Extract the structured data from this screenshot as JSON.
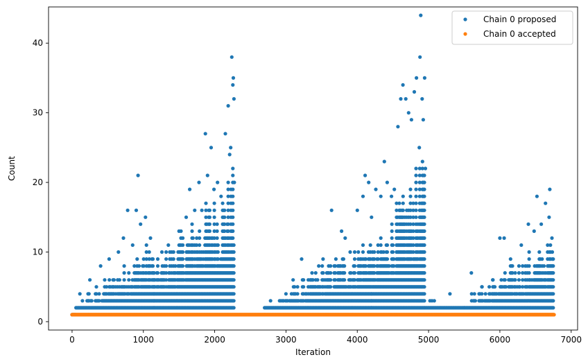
{
  "colors": {
    "proposed": "#1f77b4",
    "accepted": "#ff7f0e",
    "axis": "#000000",
    "legend_border": "#cccccc"
  },
  "chart_data": {
    "type": "scatter",
    "title": "",
    "xlabel": "Iteration",
    "ylabel": "Count",
    "xlim": [
      -330,
      7090
    ],
    "ylim": [
      -1.2,
      45.2
    ],
    "xticks": [
      0,
      1000,
      2000,
      3000,
      4000,
      5000,
      6000,
      7000
    ],
    "yticks": [
      0,
      10,
      20,
      30,
      40
    ],
    "grid": false,
    "legend_position": "top-right",
    "series": [
      {
        "name": "Chain 0 proposed",
        "color": "#1f77b4",
        "segments": [
          {
            "range": [
              0,
              50
            ],
            "step": 12,
            "max": [
              1,
              1
            ]
          },
          {
            "range": [
              55,
              1150
            ],
            "step": 13,
            "max": [
              2,
              12
            ]
          },
          {
            "range": [
              1150,
              2280
            ],
            "step": 13,
            "max": [
              8,
              22
            ]
          },
          {
            "range": [
              2700,
              3300
            ],
            "step": 14,
            "max": [
              2,
              6
            ]
          },
          {
            "range": [
              3300,
              4200
            ],
            "step": 13,
            "max": [
              6,
              13
            ]
          },
          {
            "range": [
              4200,
              4950
            ],
            "step": 13,
            "max": [
              10,
              24
            ]
          },
          {
            "range": [
              4950,
              5500
            ],
            "step": 14,
            "max": [
              3,
              2
            ]
          },
          {
            "range": [
              5500,
              6750
            ],
            "step": 13,
            "max": [
              3,
              12
            ]
          }
        ],
        "spikes": [
          {
            "x": 110,
            "y": 4
          },
          {
            "x": 250,
            "y": 6
          },
          {
            "x": 400,
            "y": 8
          },
          {
            "x": 520,
            "y": 9
          },
          {
            "x": 650,
            "y": 10
          },
          {
            "x": 720,
            "y": 12
          },
          {
            "x": 780,
            "y": 16
          },
          {
            "x": 850,
            "y": 11
          },
          {
            "x": 900,
            "y": 16
          },
          {
            "x": 925,
            "y": 21
          },
          {
            "x": 960,
            "y": 14
          },
          {
            "x": 1030,
            "y": 15
          },
          {
            "x": 1100,
            "y": 12
          },
          {
            "x": 1260,
            "y": 10
          },
          {
            "x": 1350,
            "y": 11
          },
          {
            "x": 1500,
            "y": 13
          },
          {
            "x": 1600,
            "y": 15
          },
          {
            "x": 1650,
            "y": 19
          },
          {
            "x": 1720,
            "y": 16
          },
          {
            "x": 1780,
            "y": 20
          },
          {
            "x": 1820,
            "y": 16
          },
          {
            "x": 1870,
            "y": 27
          },
          {
            "x": 1900,
            "y": 21
          },
          {
            "x": 1950,
            "y": 25
          },
          {
            "x": 1990,
            "y": 19
          },
          {
            "x": 2040,
            "y": 20
          },
          {
            "x": 2090,
            "y": 18
          },
          {
            "x": 2150,
            "y": 27
          },
          {
            "x": 2190,
            "y": 31
          },
          {
            "x": 2210,
            "y": 24
          },
          {
            "x": 2225,
            "y": 25
          },
          {
            "x": 2240,
            "y": 38
          },
          {
            "x": 2255,
            "y": 34
          },
          {
            "x": 2262,
            "y": 35
          },
          {
            "x": 2270,
            "y": 32
          },
          {
            "x": 2275,
            "y": 20
          },
          {
            "x": 2930,
            "y": 3
          },
          {
            "x": 3000,
            "y": 4
          },
          {
            "x": 3100,
            "y": 6
          },
          {
            "x": 3220,
            "y": 9
          },
          {
            "x": 3350,
            "y": 6
          },
          {
            "x": 3460,
            "y": 8
          },
          {
            "x": 3520,
            "y": 9
          },
          {
            "x": 3640,
            "y": 16
          },
          {
            "x": 3700,
            "y": 9
          },
          {
            "x": 3780,
            "y": 13
          },
          {
            "x": 3830,
            "y": 12
          },
          {
            "x": 3900,
            "y": 10
          },
          {
            "x": 4000,
            "y": 16
          },
          {
            "x": 4080,
            "y": 18
          },
          {
            "x": 4110,
            "y": 21
          },
          {
            "x": 4160,
            "y": 20
          },
          {
            "x": 4200,
            "y": 15
          },
          {
            "x": 4260,
            "y": 19
          },
          {
            "x": 4330,
            "y": 18
          },
          {
            "x": 4380,
            "y": 23
          },
          {
            "x": 4420,
            "y": 20
          },
          {
            "x": 4480,
            "y": 18
          },
          {
            "x": 4520,
            "y": 19
          },
          {
            "x": 4570,
            "y": 28
          },
          {
            "x": 4610,
            "y": 32
          },
          {
            "x": 4640,
            "y": 34
          },
          {
            "x": 4680,
            "y": 32
          },
          {
            "x": 4720,
            "y": 30
          },
          {
            "x": 4760,
            "y": 29
          },
          {
            "x": 4800,
            "y": 33
          },
          {
            "x": 4830,
            "y": 35
          },
          {
            "x": 4870,
            "y": 25
          },
          {
            "x": 4880,
            "y": 38
          },
          {
            "x": 4890,
            "y": 44
          },
          {
            "x": 4910,
            "y": 32
          },
          {
            "x": 4925,
            "y": 29
          },
          {
            "x": 4945,
            "y": 35
          },
          {
            "x": 4955,
            "y": 22
          },
          {
            "x": 5080,
            "y": 3
          },
          {
            "x": 5300,
            "y": 4
          },
          {
            "x": 5600,
            "y": 7
          },
          {
            "x": 5750,
            "y": 5
          },
          {
            "x": 5900,
            "y": 6
          },
          {
            "x": 6000,
            "y": 12
          },
          {
            "x": 6060,
            "y": 12
          },
          {
            "x": 6150,
            "y": 9
          },
          {
            "x": 6300,
            "y": 11
          },
          {
            "x": 6400,
            "y": 14
          },
          {
            "x": 6480,
            "y": 13
          },
          {
            "x": 6520,
            "y": 18
          },
          {
            "x": 6580,
            "y": 14
          },
          {
            "x": 6640,
            "y": 17
          },
          {
            "x": 6690,
            "y": 15
          },
          {
            "x": 6700,
            "y": 19
          },
          {
            "x": 6730,
            "y": 12
          }
        ]
      },
      {
        "name": "Chain 0 accepted",
        "color": "#ff7f0e",
        "line": {
          "x_from": 0,
          "x_to": 6760,
          "step": 4,
          "y": 1
        }
      }
    ]
  }
}
